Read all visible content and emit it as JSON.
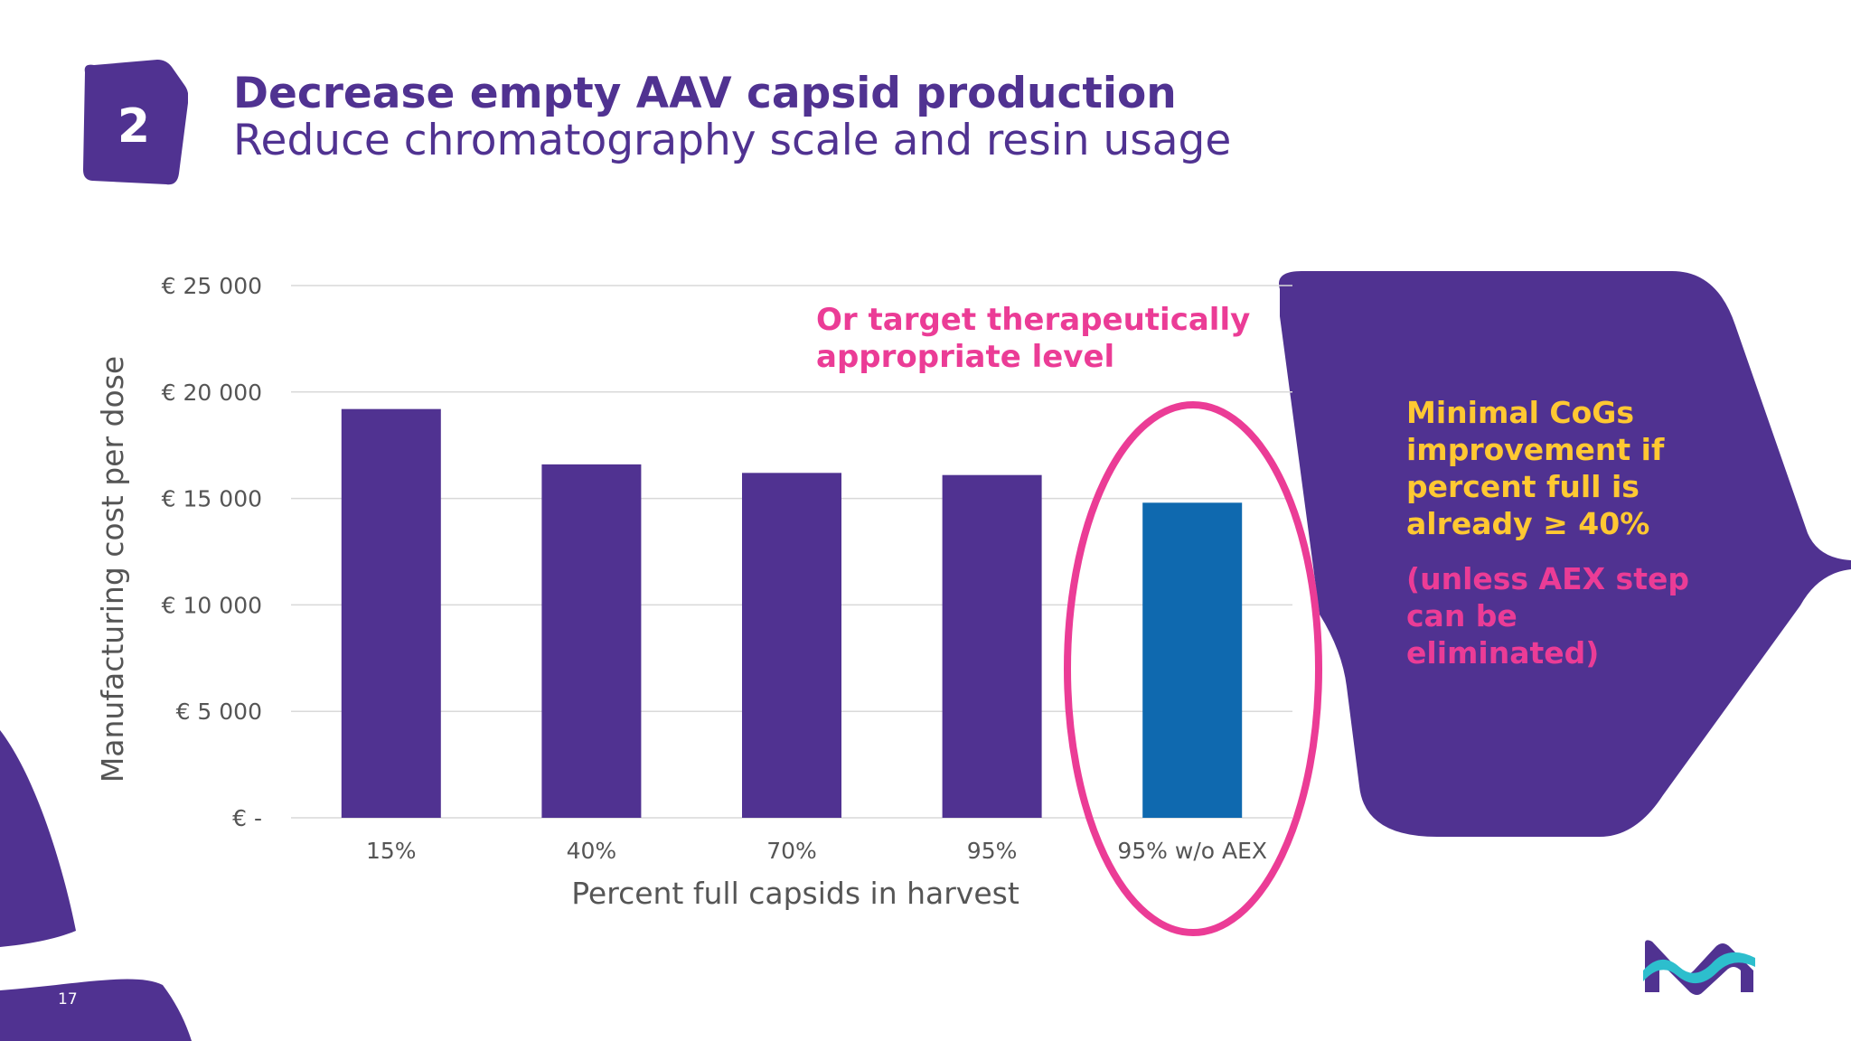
{
  "slide": {
    "badge_number": "2",
    "title": "Decrease empty AAV capsid production",
    "subtitle": "Reduce chromatography scale and resin usage",
    "page_number": "17"
  },
  "annotation": {
    "line1": "Or target therapeutically",
    "line2": "appropriate level"
  },
  "callout": {
    "text": "Minimal CoGs improvement if percent full is already ≥ 40%",
    "subtext": "(unless AEX step can be eliminated)"
  },
  "colors": {
    "brand_purple": "#503291",
    "highlight_blue": "#0f69af",
    "accent_pink": "#eb3c96",
    "accent_yellow": "#ffc832",
    "logo_cyan": "#2dbecd"
  },
  "chart_data": {
    "type": "bar",
    "categories": [
      "15%",
      "40%",
      "70%",
      "95%",
      "95% w/o AEX"
    ],
    "values": [
      19200,
      16600,
      16200,
      16100,
      14800
    ],
    "xlabel": "Percent full capsids in harvest",
    "ylabel": "Manufacturing cost per dose",
    "ylim": [
      0,
      25000
    ],
    "yticks": [
      0,
      5000,
      10000,
      15000,
      20000,
      25000
    ],
    "ytick_labels": [
      "€ -",
      "€ 5 000",
      "€ 10 000",
      "€ 15 000",
      "€ 20 000",
      "€ 25 000"
    ],
    "highlighted_category": "95% w/o AEX",
    "grid": true,
    "legend": "none"
  }
}
